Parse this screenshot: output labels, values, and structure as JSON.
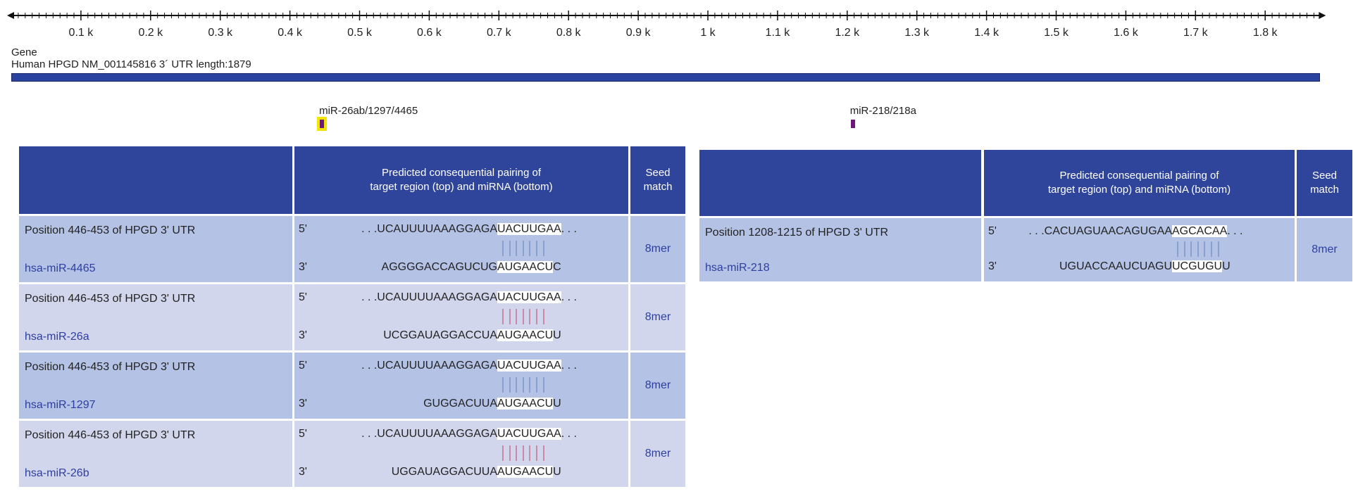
{
  "axis": {
    "length": 1879,
    "tick_labels": [
      "0.1 k",
      "0.2 k",
      "0.3 k",
      "0.4 k",
      "0.5 k",
      "0.6 k",
      "0.7 k",
      "0.8 k",
      "0.9 k",
      "1 k",
      "1.1 k",
      "1.2 k",
      "1.3 k",
      "1.4 k",
      "1.5 k",
      "1.6 k",
      "1.7 k",
      "1.8 k"
    ]
  },
  "gene": {
    "section_label": "Gene",
    "title": "Human HPGD NM_001145816 3´ UTR length:1879",
    "bar_color": "#2a43a0"
  },
  "sites": [
    {
      "label": "miR-26ab/1297/4465",
      "position": 446,
      "highlighted": true
    },
    {
      "label": "miR-218/218a",
      "position": 1208,
      "highlighted": false
    }
  ],
  "colors": {
    "header": "#2f459c",
    "row_dark": "#b4c2e6",
    "row_light": "#d2d6ec",
    "mirna_text": "#2d3f9e"
  },
  "tables": [
    {
      "header": {
        "pairing": "Predicted consequential pairing of target region (top) and miRNA (bottom)",
        "pairing_line1": "Predicted consequential pairing of",
        "pairing_line2": "target region (top) and miRNA (bottom)",
        "seed_line1": "Seed",
        "seed_line2": "match"
      },
      "rows": [
        {
          "position": "Position 446-453 of HPGD 3' UTR",
          "mirna": "hsa-miR-4465",
          "top_prime": "5'",
          "bottom_prime": "3'",
          "top_pre": ". . .UCAUUUUAAAGGAGA",
          "top_hi": "UACUUGAA",
          "top_post": ". . .",
          "bot_pre": "AGGGGACCAGUCUG",
          "bot_hi": "AUGAACU",
          "bot_post": "C",
          "pairs": 7,
          "pair_color": "#8aa0d0",
          "seed": "8mer"
        },
        {
          "position": "Position 446-453 of HPGD 3' UTR",
          "mirna": "hsa-miR-26a",
          "top_prime": "5'",
          "bottom_prime": "3'",
          "top_pre": ". . .UCAUUUUAAAGGAGA",
          "top_hi": "UACUUGAA",
          "top_post": ". . .",
          "bot_pre": "UCGGAUAGGACCUA",
          "bot_hi": "AUGAACU",
          "bot_post": "U",
          "pairs": 7,
          "pair_color": "#c98aa8",
          "seed": "8mer"
        },
        {
          "position": "Position 446-453 of HPGD 3' UTR",
          "mirna": "hsa-miR-1297",
          "top_prime": "5'",
          "bottom_prime": "3'",
          "top_pre": ". . .UCAUUUUAAAGGAGA",
          "top_hi": "UACUUGAA",
          "top_post": ". . .",
          "bot_pre": "GUGGACUUA",
          "bot_hi": "AUGAACU",
          "bot_post": "U",
          "pairs": 7,
          "pair_color": "#8aa0d0",
          "seed": "8mer"
        },
        {
          "position": "Position 446-453 of HPGD 3' UTR",
          "mirna": "hsa-miR-26b",
          "top_prime": "5'",
          "bottom_prime": "3'",
          "top_pre": ". . .UCAUUUUAAAGGAGA",
          "top_hi": "UACUUGAA",
          "top_post": ". . .",
          "bot_pre": "UGGAUAGGACUUA",
          "bot_hi": "AUGAACU",
          "bot_post": "U",
          "pairs": 7,
          "pair_color": "#c98aa8",
          "seed": "8mer"
        }
      ]
    },
    {
      "header": {
        "pairing": "Predicted consequential pairing of target region (top) and miRNA (bottom)",
        "pairing_line1": "Predicted consequential pairing of",
        "pairing_line2": "target region (top) and miRNA (bottom)",
        "seed_line1": "Seed",
        "seed_line2": "match"
      },
      "rows": [
        {
          "position": "Position 1208-1215 of HPGD 3' UTR",
          "mirna": "hsa-miR-218",
          "top_prime": "5'",
          "bottom_prime": "3'",
          "top_pre": ". . .CACUAGUAACAGUGAA",
          "top_hi": "AGCACAA",
          "top_post": ". . .",
          "bot_pre": "UGUACCAAUCUAGU",
          "bot_hi": "UCGUGU",
          "bot_post": "U",
          "pairs": 7,
          "pair_color": "#8aa0d0",
          "seed": "8mer"
        }
      ]
    }
  ]
}
